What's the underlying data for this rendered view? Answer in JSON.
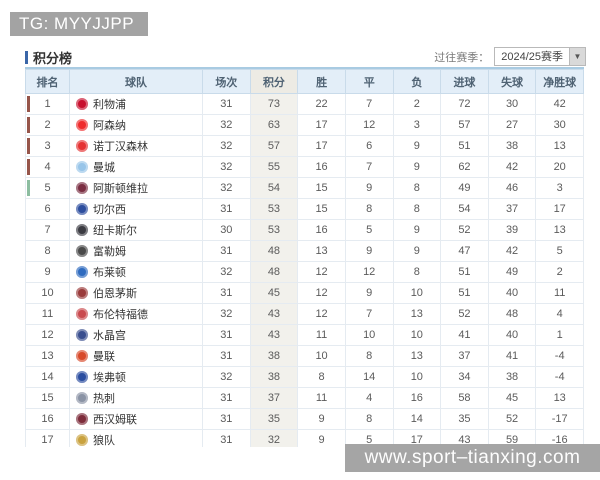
{
  "badge": {
    "text": "TG: MYYJJPP"
  },
  "page": {
    "title": "积分榜"
  },
  "season_selector": {
    "label": "过往赛季：",
    "value": "2024/25赛季",
    "dropdown_icon": "▼"
  },
  "watermark": {
    "text": "www.sport–tianxing.com"
  },
  "colors": {
    "accent_blue": "#3a66a8",
    "header_bg": "#e3eef8",
    "points_col_bg": "#f2f1ec",
    "champions_bar": "#96554a",
    "europa_bar": "#8cbda0",
    "badge_bg": "#a3a3a3"
  },
  "standings": {
    "columns": [
      "排名",
      "球队",
      "场次",
      "积分",
      "胜",
      "平",
      "负",
      "进球",
      "失球",
      "净胜球"
    ],
    "rows": [
      {
        "rank": 1,
        "team": "利物浦",
        "logo_color": "#c8102e",
        "bar": "#96554a",
        "played": 31,
        "points": 73,
        "win": 22,
        "draw": 7,
        "loss": 2,
        "gf": 72,
        "ga": 30,
        "gd": 42
      },
      {
        "rank": 2,
        "team": "阿森纳",
        "logo_color": "#ef2b2d",
        "bar": "#96554a",
        "played": 32,
        "points": 63,
        "win": 17,
        "draw": 12,
        "loss": 3,
        "gf": 57,
        "ga": 27,
        "gd": 30
      },
      {
        "rank": 3,
        "team": "诺丁汉森林",
        "logo_color": "#e53233",
        "bar": "#96554a",
        "played": 32,
        "points": 57,
        "win": 17,
        "draw": 6,
        "loss": 9,
        "gf": 51,
        "ga": 38,
        "gd": 13
      },
      {
        "rank": 4,
        "team": "曼城",
        "logo_color": "#98c5e9",
        "bar": "#96554a",
        "played": 32,
        "points": 55,
        "win": 16,
        "draw": 7,
        "loss": 9,
        "gf": 62,
        "ga": 42,
        "gd": 20
      },
      {
        "rank": 5,
        "team": "阿斯顿维拉",
        "logo_color": "#7a2e42",
        "bar": "#8cbda0",
        "played": 32,
        "points": 54,
        "win": 15,
        "draw": 9,
        "loss": 8,
        "gf": 49,
        "ga": 46,
        "gd": 3
      },
      {
        "rank": 6,
        "team": "切尔西",
        "logo_color": "#2d4e9e",
        "bar": "",
        "played": 31,
        "points": 53,
        "win": 15,
        "draw": 8,
        "loss": 8,
        "gf": 54,
        "ga": 37,
        "gd": 17
      },
      {
        "rank": 7,
        "team": "纽卡斯尔",
        "logo_color": "#3b3b42",
        "bar": "",
        "played": 30,
        "points": 53,
        "win": 16,
        "draw": 5,
        "loss": 9,
        "gf": 52,
        "ga": 39,
        "gd": 13
      },
      {
        "rank": 8,
        "team": "富勒姆",
        "logo_color": "#4a4a4a",
        "bar": "",
        "played": 31,
        "points": 48,
        "win": 13,
        "draw": 9,
        "loss": 9,
        "gf": 47,
        "ga": 42,
        "gd": 5
      },
      {
        "rank": 9,
        "team": "布莱顿",
        "logo_color": "#2f6bbf",
        "bar": "",
        "played": 32,
        "points": 48,
        "win": 12,
        "draw": 12,
        "loss": 8,
        "gf": 51,
        "ga": 49,
        "gd": 2
      },
      {
        "rank": 10,
        "team": "伯恩茅斯",
        "logo_color": "#9a3b3b",
        "bar": "",
        "played": 31,
        "points": 45,
        "win": 12,
        "draw": 9,
        "loss": 10,
        "gf": 51,
        "ga": 40,
        "gd": 11
      },
      {
        "rank": 11,
        "team": "布伦特福德",
        "logo_color": "#c94a4e",
        "bar": "",
        "played": 32,
        "points": 43,
        "win": 12,
        "draw": 7,
        "loss": 13,
        "gf": 52,
        "ga": 48,
        "gd": 4
      },
      {
        "rank": 12,
        "team": "水晶宫",
        "logo_color": "#3a4f8f",
        "bar": "",
        "played": 31,
        "points": 43,
        "win": 11,
        "draw": 10,
        "loss": 10,
        "gf": 41,
        "ga": 40,
        "gd": 1
      },
      {
        "rank": 13,
        "team": "曼联",
        "logo_color": "#d8492a",
        "bar": "",
        "played": 31,
        "points": 38,
        "win": 10,
        "draw": 8,
        "loss": 13,
        "gf": 37,
        "ga": 41,
        "gd": -4
      },
      {
        "rank": 14,
        "team": "埃弗顿",
        "logo_color": "#2b4ea0",
        "bar": "",
        "played": 32,
        "points": 38,
        "win": 8,
        "draw": 14,
        "loss": 10,
        "gf": 34,
        "ga": 38,
        "gd": -4
      },
      {
        "rank": 15,
        "team": "热刺",
        "logo_color": "#8a93a5",
        "bar": "",
        "played": 31,
        "points": 37,
        "win": 11,
        "draw": 4,
        "loss": 16,
        "gf": 58,
        "ga": 45,
        "gd": 13
      },
      {
        "rank": 16,
        "team": "西汉姆联",
        "logo_color": "#7d2c3b",
        "bar": "",
        "played": 31,
        "points": 35,
        "win": 9,
        "draw": 8,
        "loss": 14,
        "gf": 35,
        "ga": 52,
        "gd": -17
      },
      {
        "rank": 17,
        "team": "狼队",
        "logo_color": "#c9a23f",
        "bar": "",
        "played": 31,
        "points": 32,
        "win": 9,
        "draw": 5,
        "loss": 17,
        "gf": 43,
        "ga": 59,
        "gd": -16
      }
    ]
  }
}
